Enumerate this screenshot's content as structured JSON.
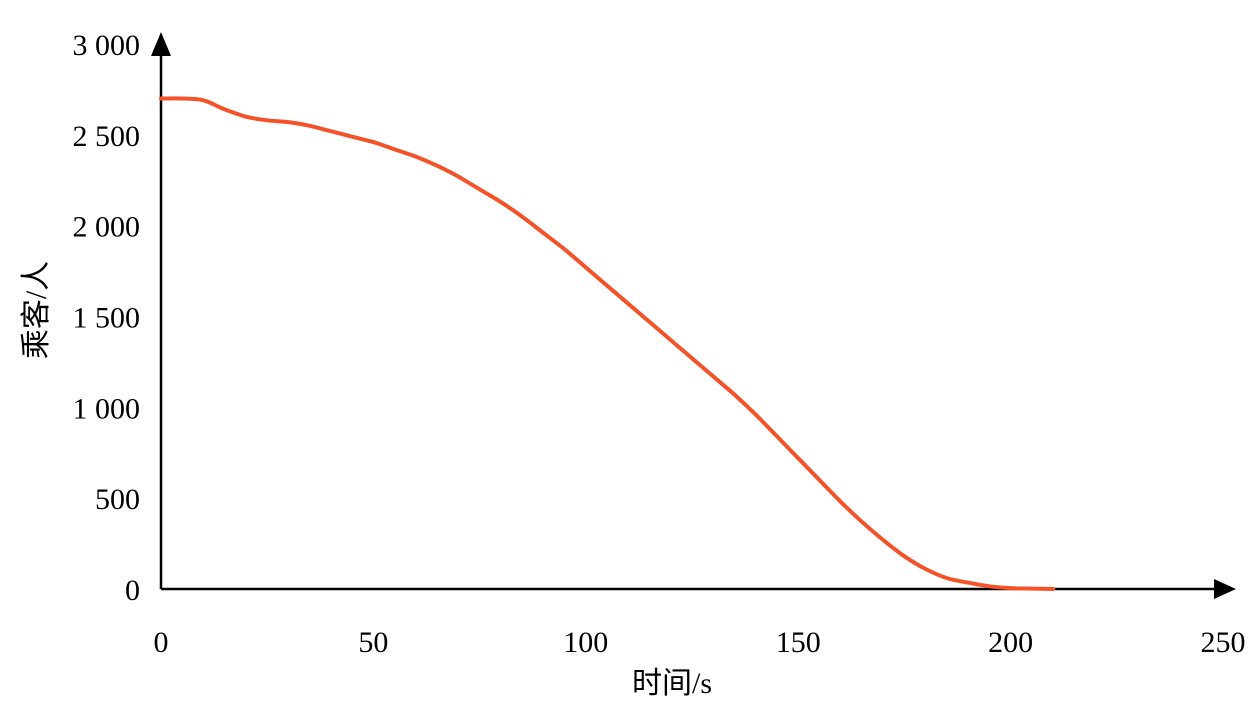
{
  "chart_data": {
    "type": "line",
    "xlabel": "时间/s",
    "ylabel": "乘客/人",
    "xlim": [
      0,
      250
    ],
    "ylim": [
      0,
      3000
    ],
    "x_ticks": [
      0,
      50,
      100,
      150,
      200,
      250
    ],
    "x_tick_labels": [
      "0",
      "50",
      "100",
      "150",
      "200",
      "250"
    ],
    "y_ticks": [
      0,
      500,
      1000,
      1500,
      2000,
      2500,
      3000
    ],
    "y_tick_labels": [
      "0",
      "500",
      "1 000",
      "1 500",
      "2 000",
      "2 500",
      "3 000"
    ],
    "grid": false,
    "legend": "none",
    "series": [
      {
        "color": "#f4532a",
        "x": [
          0,
          5,
          10,
          15,
          20,
          25,
          30,
          35,
          40,
          45,
          50,
          55,
          60,
          65,
          70,
          75,
          80,
          85,
          90,
          95,
          100,
          105,
          110,
          115,
          120,
          125,
          130,
          135,
          140,
          145,
          150,
          155,
          160,
          165,
          170,
          175,
          180,
          185,
          190,
          195,
          200,
          205,
          210
        ],
        "y": [
          2700,
          2700,
          2690,
          2640,
          2600,
          2580,
          2570,
          2550,
          2520,
          2490,
          2460,
          2420,
          2380,
          2330,
          2270,
          2200,
          2130,
          2050,
          1960,
          1870,
          1770,
          1670,
          1570,
          1470,
          1370,
          1270,
          1170,
          1070,
          960,
          840,
          720,
          600,
          480,
          370,
          270,
          180,
          110,
          60,
          35,
          15,
          5,
          2,
          0
        ]
      }
    ]
  }
}
